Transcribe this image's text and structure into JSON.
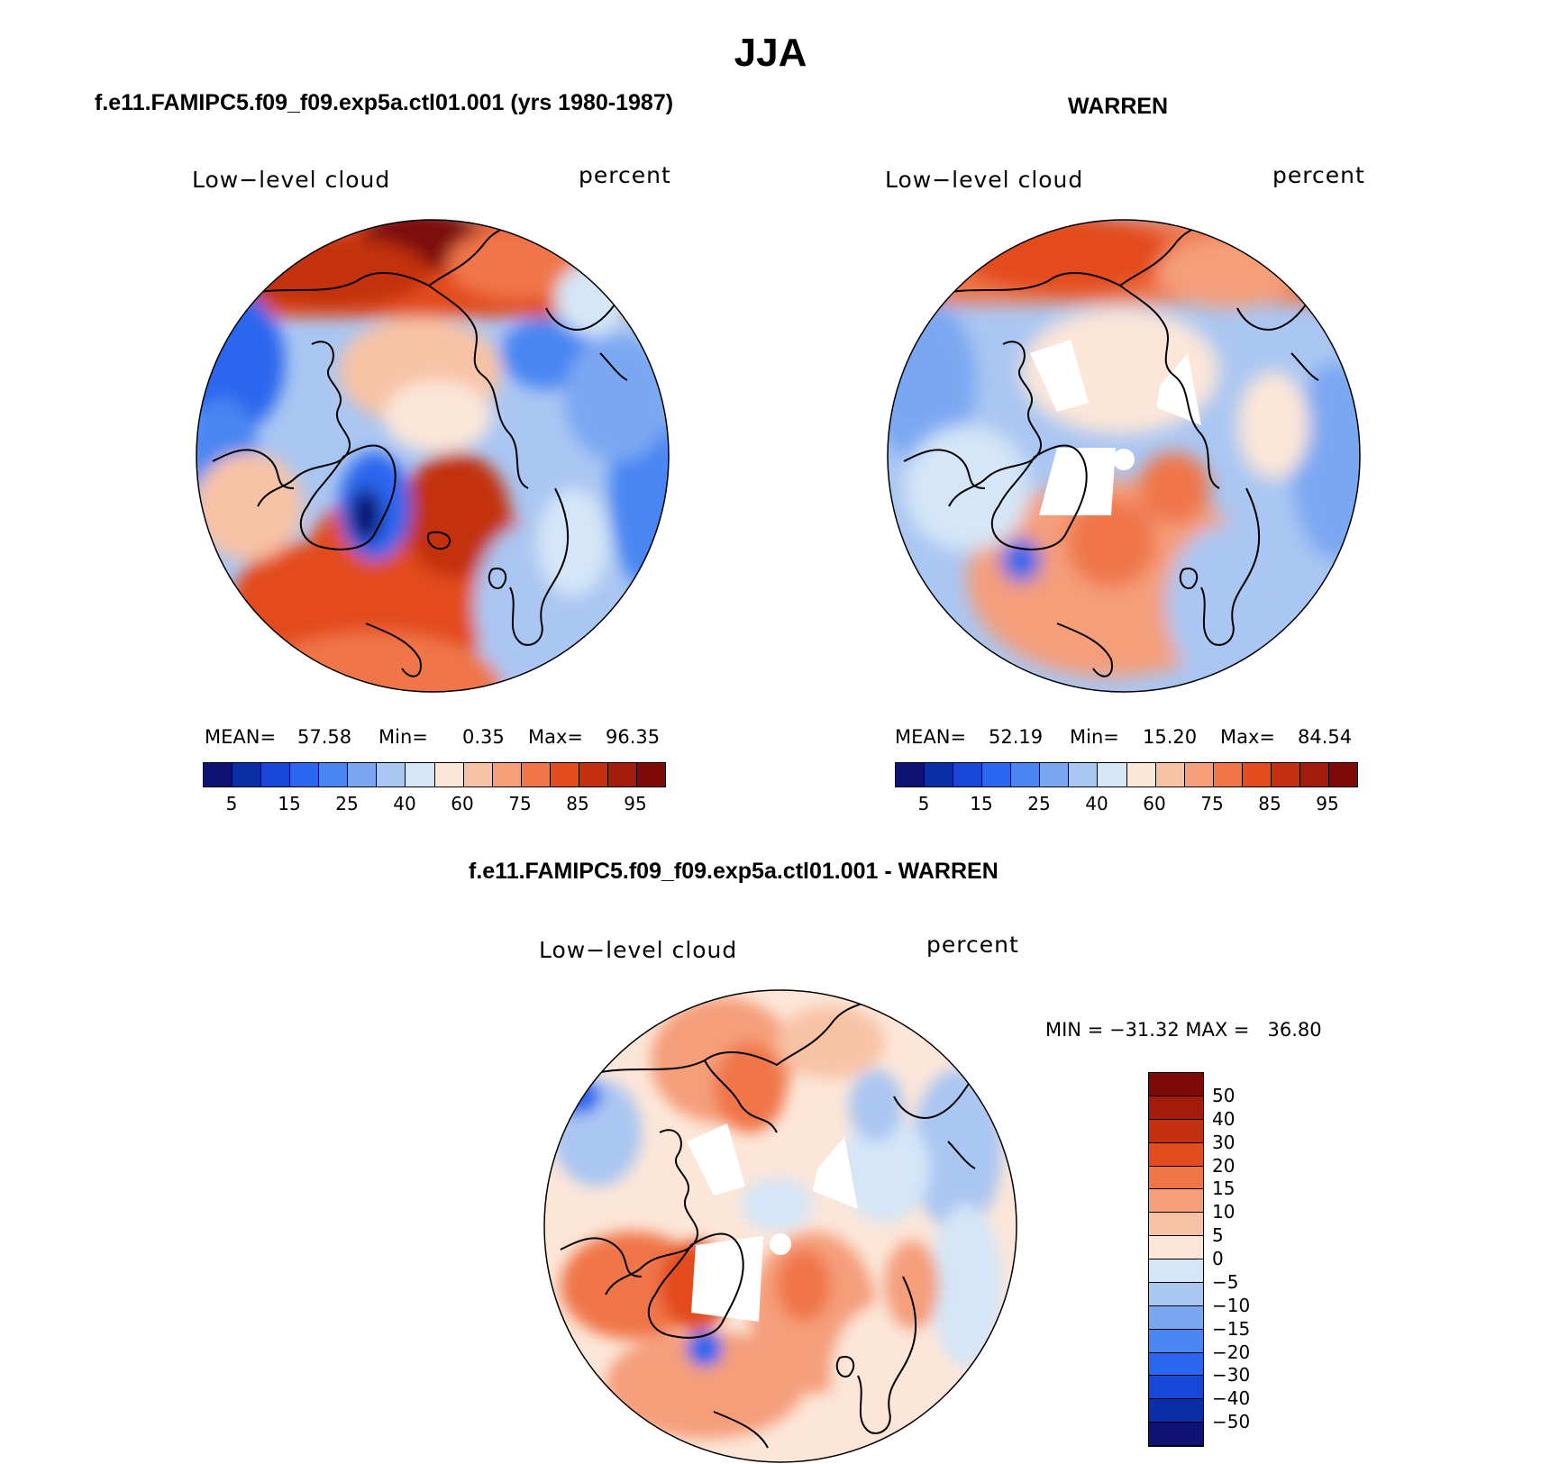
{
  "page_title": "JJA",
  "panels": [
    {
      "title": "f.e11.FAMIPC5.f09_f09.exp5a.ctl01.001 (yrs 1980-1987)",
      "variable": "Low−level cloud",
      "units": "percent",
      "stats": {
        "mean_label": "MEAN=",
        "mean": "57.58",
        "min_label": "Min=",
        "min": "0.35",
        "max_label": "Max=",
        "max": "96.35"
      },
      "colorbar_ticks": [
        "5",
        "15",
        "25",
        "40",
        "60",
        "75",
        "85",
        "95"
      ]
    },
    {
      "title": "WARREN",
      "variable": "Low−level cloud",
      "units": "percent",
      "stats": {
        "mean_label": "MEAN=",
        "mean": "52.19",
        "min_label": "Min=",
        "min": "15.20",
        "max_label": "Max=",
        "max": "84.54"
      },
      "colorbar_ticks": [
        "5",
        "15",
        "25",
        "40",
        "60",
        "75",
        "85",
        "95"
      ]
    },
    {
      "title": "f.e11.FAMIPC5.f09_f09.exp5a.ctl01.001 - WARREN",
      "variable": "Low−level cloud",
      "units": "percent",
      "stats_text": "MIN = −31.32 MAX =   36.80",
      "colorbar_ticks": [
        "50",
        "40",
        "30",
        "20",
        "15",
        "10",
        "5",
        "0",
        "−5",
        "−10",
        "−15",
        "−20",
        "−30",
        "−40",
        "−50"
      ]
    }
  ],
  "chart_data": [
    {
      "type": "heatmap",
      "projection": "north-polar-stereographic",
      "title": "f.e11.FAMIPC5.f09_f09.exp5a.ctl01.001 (yrs 1980-1987)",
      "variable": "Low-level cloud",
      "units": "percent",
      "mean": 57.58,
      "min": 0.35,
      "max": 96.35,
      "levels": [
        5,
        10,
        15,
        20,
        25,
        30,
        40,
        50,
        60,
        70,
        75,
        80,
        85,
        90,
        95
      ],
      "colors": [
        "#0d1273",
        "#0a2ea6",
        "#1846d6",
        "#2b66ee",
        "#4a86f2",
        "#7aa7f2",
        "#aac6f2",
        "#d4e6f7",
        "#fce6d8",
        "#f8c2a5",
        "#f59e7a",
        "#f07648",
        "#e34c1e",
        "#c3300f",
        "#a41c0c",
        "#7e0907"
      ]
    },
    {
      "type": "heatmap",
      "projection": "north-polar-stereographic",
      "title": "WARREN",
      "variable": "Low-level cloud",
      "units": "percent",
      "mean": 52.19,
      "min": 15.2,
      "max": 84.54,
      "levels": [
        5,
        10,
        15,
        20,
        25,
        30,
        40,
        50,
        60,
        70,
        75,
        80,
        85,
        90,
        95
      ],
      "colors": [
        "#0d1273",
        "#0a2ea6",
        "#1846d6",
        "#2b66ee",
        "#4a86f2",
        "#7aa7f2",
        "#aac6f2",
        "#d4e6f7",
        "#fce6d8",
        "#f8c2a5",
        "#f59e7a",
        "#f07648",
        "#e34c1e",
        "#c3300f",
        "#a41c0c",
        "#7e0907"
      ]
    },
    {
      "type": "heatmap",
      "projection": "north-polar-stereographic",
      "title": "f.e11.FAMIPC5.f09_f09.exp5a.ctl01.001 - WARREN",
      "variable": "Low-level cloud",
      "units": "percent",
      "min": -31.32,
      "max": 36.8,
      "levels": [
        -50,
        -40,
        -30,
        -20,
        -15,
        -10,
        -5,
        0,
        5,
        10,
        15,
        20,
        30,
        40,
        50
      ],
      "colors": [
        "#0d1273",
        "#0a2ea6",
        "#1846d6",
        "#2b66ee",
        "#4a86f2",
        "#7aa7f2",
        "#aac6f2",
        "#d4e6f7",
        "#fce6d8",
        "#f8c2a5",
        "#f59e7a",
        "#f07648",
        "#e34c1e",
        "#c3300f",
        "#a41c0c",
        "#7e0907"
      ]
    }
  ]
}
